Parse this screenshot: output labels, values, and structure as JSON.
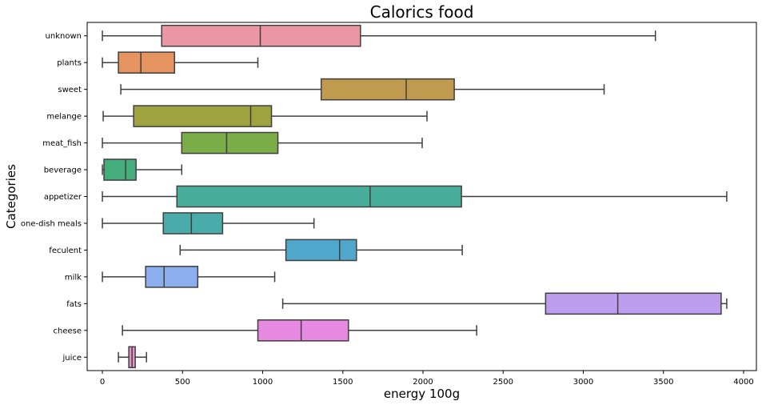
{
  "chart_data": {
    "type": "box",
    "orientation": "horizontal",
    "title": "Calorics food",
    "xlabel": "energy 100g",
    "ylabel": "Categories",
    "xlim": [
      -95,
      4080
    ],
    "xticks": [
      0,
      500,
      1000,
      1500,
      2000,
      2500,
      3000,
      3500,
      4000
    ],
    "grid": false,
    "categories": [
      "unknown",
      "plants",
      "sweet",
      "melange",
      "meat_fish",
      "beverage",
      "appetizer",
      "one-dish meals",
      "feculent",
      "milk",
      "fats",
      "cheese",
      "juice"
    ],
    "series": [
      {
        "category": "unknown",
        "min": 0,
        "q1": 370,
        "median": 985,
        "q3": 1610,
        "max": 3450,
        "color": "#ea96a3"
      },
      {
        "category": "plants",
        "min": 0,
        "q1": 100,
        "median": 240,
        "q3": 450,
        "max": 970,
        "color": "#e5935f"
      },
      {
        "category": "sweet",
        "min": 115,
        "q1": 1365,
        "median": 1895,
        "q3": 2195,
        "max": 3130,
        "color": "#c09a4f"
      },
      {
        "category": "melange",
        "min": 5,
        "q1": 195,
        "median": 925,
        "q3": 1055,
        "max": 2025,
        "color": "#9ea23f"
      },
      {
        "category": "meat_fish",
        "min": 0,
        "q1": 495,
        "median": 775,
        "q3": 1095,
        "max": 1995,
        "color": "#7aad47"
      },
      {
        "category": "beverage",
        "min": 0,
        "q1": 10,
        "median": 145,
        "q3": 210,
        "max": 495,
        "color": "#45ad7c"
      },
      {
        "category": "appetizer",
        "min": 0,
        "q1": 465,
        "median": 1670,
        "q3": 2240,
        "max": 3895,
        "color": "#48ae9b"
      },
      {
        "category": "one-dish meals",
        "min": 0,
        "q1": 380,
        "median": 555,
        "q3": 750,
        "max": 1320,
        "color": "#4aacaa"
      },
      {
        "category": "feculent",
        "min": 485,
        "q1": 1145,
        "median": 1480,
        "q3": 1585,
        "max": 2245,
        "color": "#4fa8cc"
      },
      {
        "category": "milk",
        "min": 0,
        "q1": 270,
        "median": 385,
        "q3": 595,
        "max": 1075,
        "color": "#8daeec"
      },
      {
        "category": "fats",
        "min": 1125,
        "q1": 2765,
        "median": 3215,
        "q3": 3860,
        "max": 3895,
        "color": "#bd9ded"
      },
      {
        "category": "cheese",
        "min": 125,
        "q1": 970,
        "median": 1240,
        "q3": 1535,
        "max": 2335,
        "color": "#e689e1"
      },
      {
        "category": "juice",
        "min": 100,
        "q1": 165,
        "median": 185,
        "q3": 205,
        "max": 275,
        "color": "#e893cc"
      }
    ]
  }
}
